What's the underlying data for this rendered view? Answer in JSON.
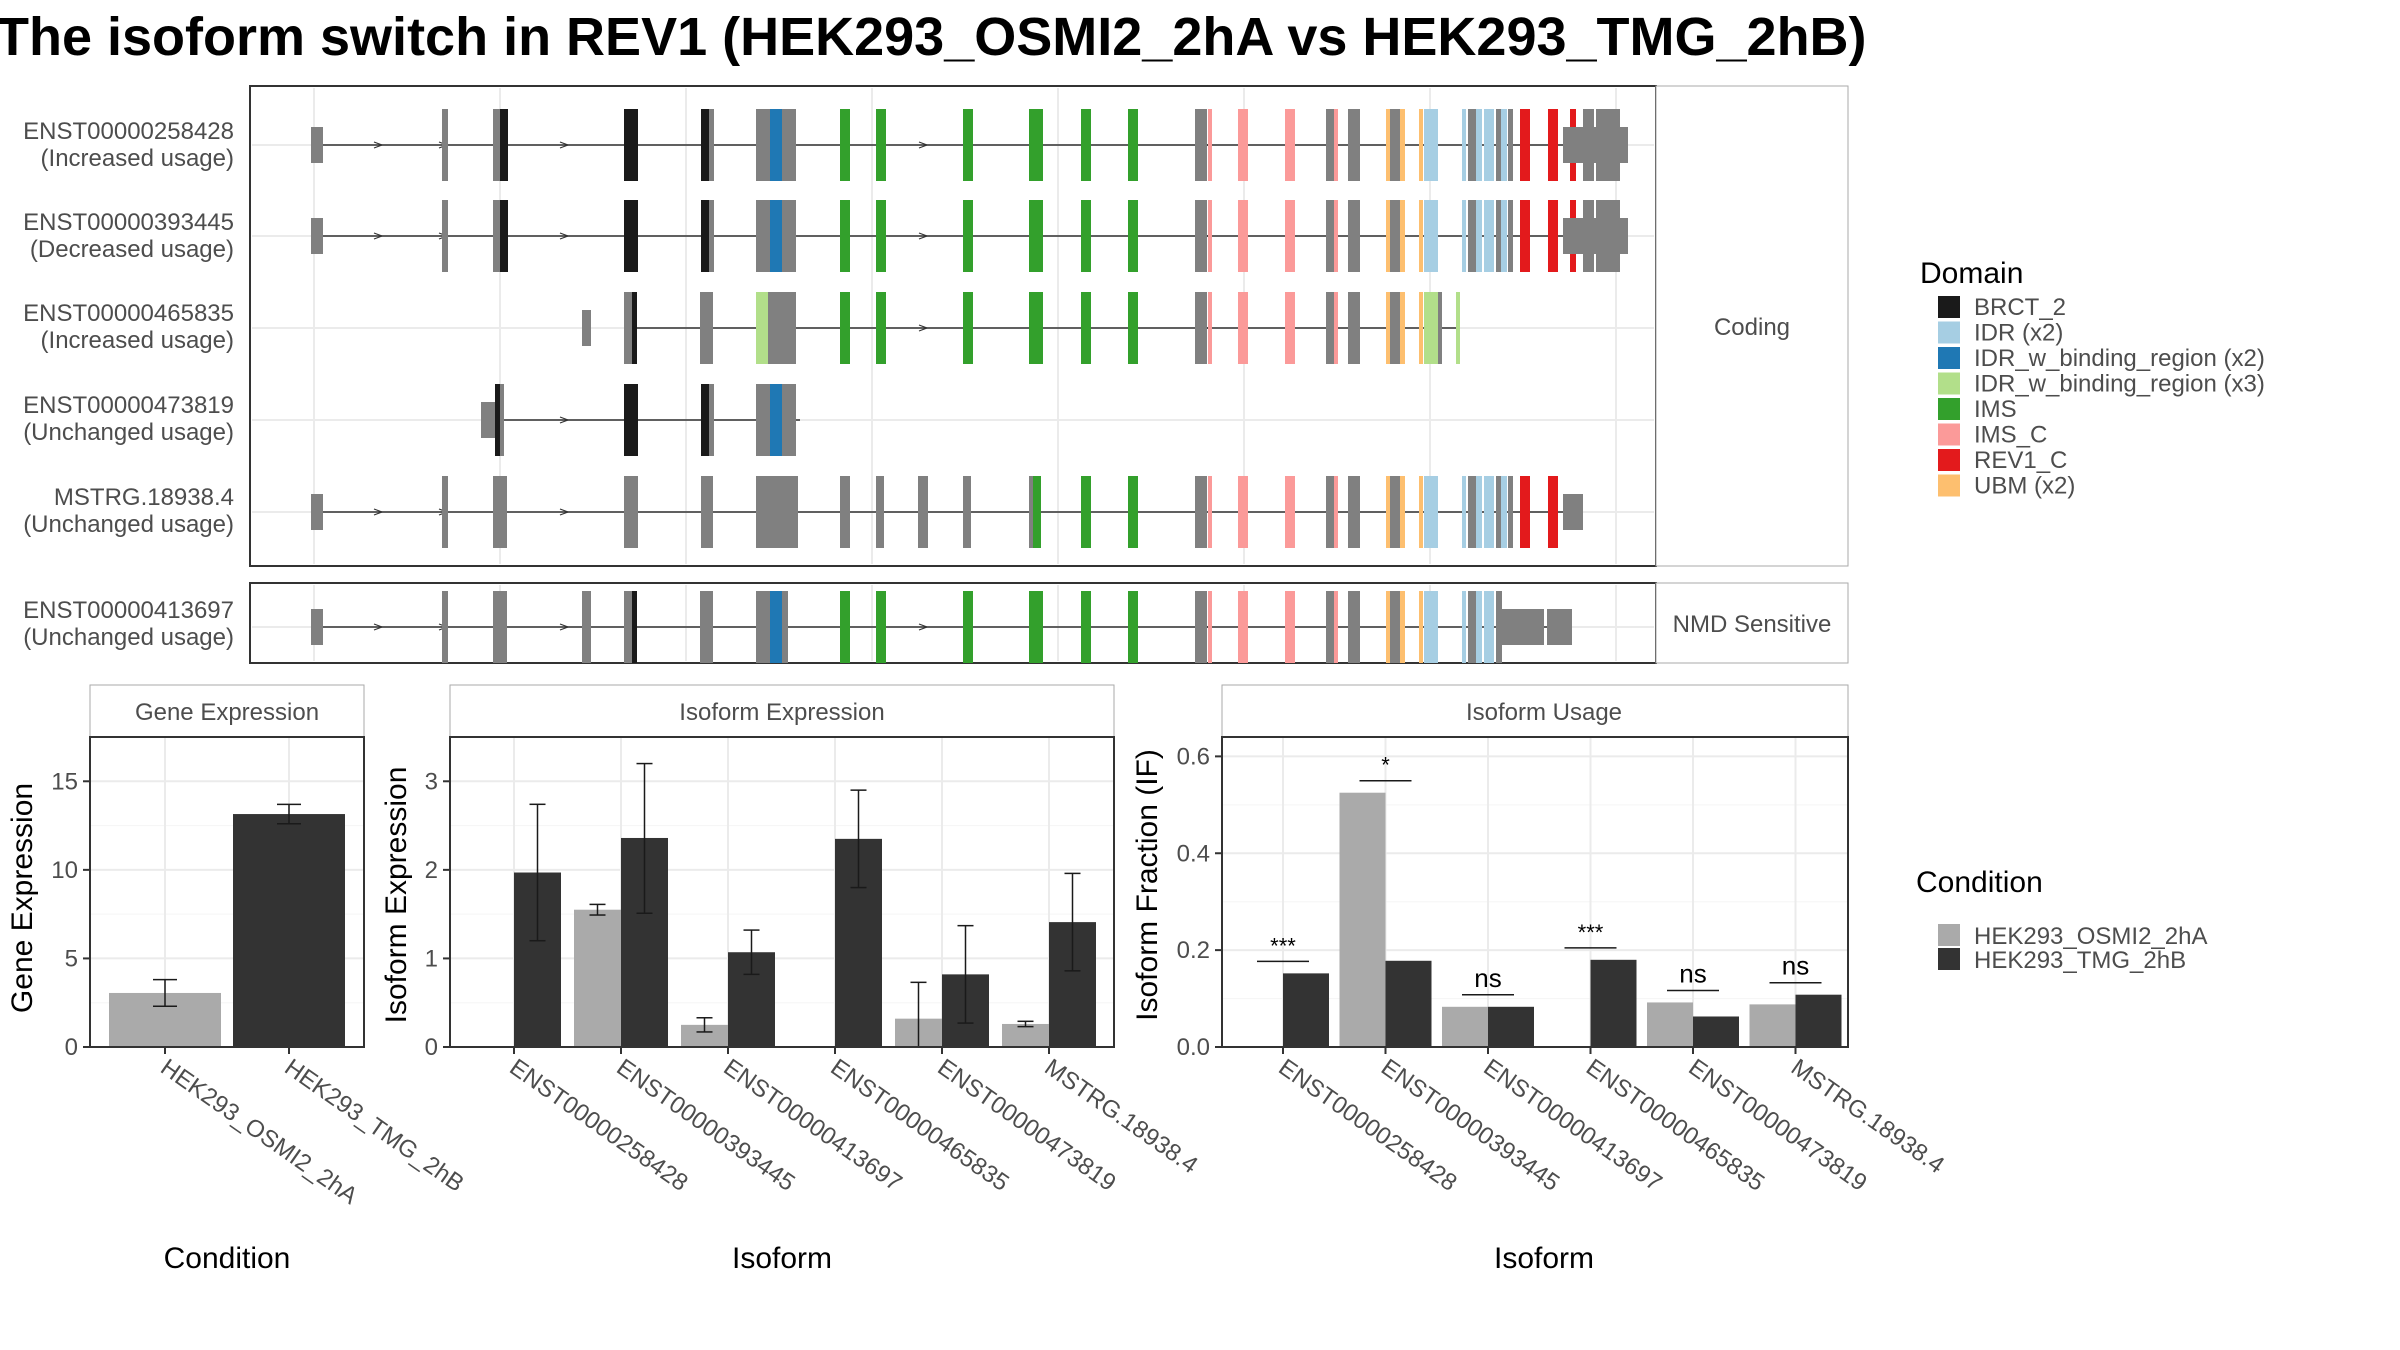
{
  "title": "The isoform switch in REV1 (HEK293_OSMI2_2hA vs HEK293_TMG_2hB)",
  "structure": {
    "panels": [
      {
        "label": "Coding",
        "rows": [
          {
            "id": "ENST00000258428",
            "usage": "(Increased usage)"
          },
          {
            "id": "ENST00000393445",
            "usage": "(Decreased usage)"
          },
          {
            "id": "ENST00000465835",
            "usage": "(Increased usage)"
          },
          {
            "id": "ENST00000473819",
            "usage": "(Unchanged usage)"
          },
          {
            "id": "MSTRG.18938.4",
            "usage": "(Unchanged usage)"
          }
        ]
      },
      {
        "label": "NMD Sensitive",
        "rows": [
          {
            "id": "ENST00000413697",
            "usage": "(Unchanged usage)"
          }
        ]
      }
    ]
  },
  "legend_domain": {
    "title": "Domain",
    "items": [
      {
        "label": "BRCT_2",
        "color": "#1a1a1a"
      },
      {
        "label": "IDR (x2)",
        "color": "#a6cee3"
      },
      {
        "label": "IDR_w_binding_region (x2)",
        "color": "#1f78b4"
      },
      {
        "label": "IDR_w_binding_region (x3)",
        "color": "#b2df8a"
      },
      {
        "label": "IMS",
        "color": "#33a02c"
      },
      {
        "label": "IMS_C",
        "color": "#fb9a99"
      },
      {
        "label": "REV1_C",
        "color": "#e31a1c"
      },
      {
        "label": "UBM (x2)",
        "color": "#fdbf6f"
      }
    ]
  },
  "legend_condition": {
    "title": "Condition",
    "items": [
      {
        "label": "HEK293_OSMI2_2hA",
        "color": "#aaaaaa"
      },
      {
        "label": "HEK293_TMG_2hB",
        "color": "#333333"
      }
    ]
  },
  "chart_data": [
    {
      "type": "bar",
      "title": "Gene Expression",
      "xlabel": "Condition",
      "ylabel": "Gene Expression",
      "ylim": [
        0,
        17.5
      ],
      "yticks": [
        0,
        5,
        10,
        15
      ],
      "categories": [
        "HEK293_OSMI2_2hA",
        "HEK293_TMG_2hB"
      ],
      "values": [
        3.05,
        13.15
      ],
      "error": [
        [
          2.3,
          3.8
        ],
        [
          12.6,
          13.7
        ]
      ],
      "colors": [
        "#aaaaaa",
        "#333333"
      ]
    },
    {
      "type": "bar",
      "title": "Isoform Expression",
      "xlabel": "Isoform",
      "ylabel": "Isoform Expression",
      "ylim": [
        0,
        3.5
      ],
      "yticks": [
        0,
        1,
        2,
        3
      ],
      "categories": [
        "ENST00000258428",
        "ENST00000393445",
        "ENST00000413697",
        "ENST00000465835",
        "ENST00000473819",
        "MSTRG.18938.4"
      ],
      "series": [
        {
          "name": "HEK293_OSMI2_2hA",
          "values": [
            0.0,
            1.55,
            0.25,
            0.0,
            0.32,
            0.26
          ],
          "error": [
            [
              0,
              0
            ],
            [
              1.49,
              1.61
            ],
            [
              0.17,
              0.33
            ],
            [
              0,
              0
            ],
            [
              0,
              0.73
            ],
            [
              0.23,
              0.29
            ]
          ]
        },
        {
          "name": "HEK293_TMG_2hB",
          "values": [
            1.97,
            2.36,
            1.07,
            2.35,
            0.82,
            1.41
          ],
          "error": [
            [
              1.2,
              2.74
            ],
            [
              1.51,
              3.2
            ],
            [
              0.82,
              1.32
            ],
            [
              1.8,
              2.9
            ],
            [
              0.27,
              1.37
            ],
            [
              0.86,
              1.96
            ]
          ]
        }
      ]
    },
    {
      "type": "bar",
      "title": "Isoform Usage",
      "xlabel": "Isoform",
      "ylabel": "Isoform Fraction (IF)",
      "ylim": [
        0,
        0.64
      ],
      "yticks": [
        0.0,
        0.2,
        0.4,
        0.6
      ],
      "categories": [
        "ENST00000258428",
        "ENST00000393445",
        "ENST00000413697",
        "ENST00000465835",
        "ENST00000473819",
        "MSTRG.18938.4"
      ],
      "series": [
        {
          "name": "HEK293_OSMI2_2hA",
          "values": [
            0.0,
            0.525,
            0.083,
            0.0,
            0.092,
            0.088
          ]
        },
        {
          "name": "HEK293_TMG_2hB",
          "values": [
            0.152,
            0.178,
            0.083,
            0.18,
            0.063,
            0.108
          ]
        }
      ],
      "significance": [
        "***",
        "*",
        "ns",
        "***",
        "ns",
        "ns"
      ]
    }
  ],
  "ticks": {
    "gene": [
      "0",
      "5",
      "10",
      "15"
    ],
    "iso_expr": [
      "0",
      "1",
      "2",
      "3"
    ],
    "iso_usage": [
      "0.0",
      "0.2",
      "0.4",
      "0.6"
    ]
  }
}
